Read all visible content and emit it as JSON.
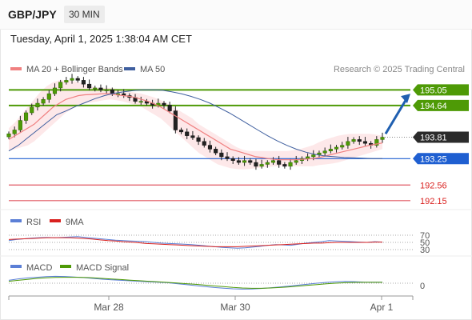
{
  "header": {
    "symbol": "GBP/JPY",
    "timeframe": "30 MIN",
    "timestamp": "Tuesday, April 1, 2025 1:38:04 AM CET"
  },
  "colors": {
    "resistance": "#4e9a06",
    "support": "#1f5fd1",
    "target": "#e05a64",
    "last_price": "#2b2b2b",
    "ma20": "#f08080",
    "ma50": "#3f5f9f",
    "band": "#fde2e4",
    "rsi": "#5b7fd6",
    "rsi_ma": "#d9211f",
    "macd": "#5b7fd6",
    "macd_signal": "#4e9a06",
    "arrow": "#1f5fb0"
  },
  "chart_data": [
    {
      "type": "candlestick",
      "legend": [
        "MA 20 + Bollinger Bands",
        "MA 50"
      ],
      "legend_placement": "top-left",
      "source": "Research © 2025 Trading Central",
      "x_ticks": [
        "Mar 28",
        "Mar 30",
        "Apr 1"
      ],
      "price_range": [
        192.0,
        195.35
      ],
      "close": [
        193.9,
        194.0,
        194.25,
        194.45,
        194.6,
        194.7,
        194.8,
        194.95,
        195.1,
        195.25,
        195.3,
        195.35,
        195.3,
        195.2,
        195.1,
        195.1,
        195.05,
        195.05,
        194.95,
        194.95,
        194.9,
        194.85,
        194.75,
        194.75,
        194.7,
        194.65,
        194.7,
        194.65,
        194.5,
        194.0,
        193.95,
        193.85,
        193.8,
        193.7,
        193.6,
        193.5,
        193.4,
        193.3,
        193.25,
        193.2,
        193.15,
        193.2,
        193.15,
        193.05,
        193.1,
        193.15,
        193.2,
        193.1,
        193.05,
        193.15,
        193.2,
        193.25,
        193.3,
        193.35,
        193.4,
        193.45,
        193.5,
        193.55,
        193.6,
        193.7,
        193.75,
        193.7,
        193.65,
        193.6,
        193.75,
        193.81
      ],
      "ma20": [
        193.75,
        193.85,
        193.95,
        194.05,
        194.15,
        194.3,
        194.45,
        194.6,
        194.7,
        194.8,
        194.85,
        194.9,
        194.92,
        194.93,
        194.94,
        194.95,
        194.95,
        194.92,
        194.9,
        194.88,
        194.85,
        194.8,
        194.75,
        194.68,
        194.6,
        194.5,
        194.4,
        194.3,
        194.2,
        194.1,
        194.0,
        193.9,
        193.8,
        193.7,
        193.6,
        193.5,
        193.45,
        193.4,
        193.35,
        193.3,
        193.28,
        193.25,
        193.23,
        193.22,
        193.22,
        193.22,
        193.23,
        193.24,
        193.25,
        193.28,
        193.32,
        193.36,
        193.4,
        193.44,
        193.48,
        193.52,
        193.56,
        193.6,
        193.63,
        193.66
      ],
      "bb_upper": [
        194.05,
        194.2,
        194.4,
        194.6,
        194.8,
        195.0,
        195.15,
        195.25,
        195.3,
        195.3,
        195.28,
        195.25,
        195.2,
        195.15,
        195.1,
        195.1,
        195.1,
        195.08,
        195.05,
        195.0,
        194.98,
        194.95,
        194.9,
        194.85,
        194.78,
        194.7,
        194.6,
        194.5,
        194.4,
        194.3,
        194.15,
        194.05,
        193.95,
        193.85,
        193.75,
        193.65,
        193.55,
        193.48,
        193.45,
        193.45,
        193.45,
        193.45,
        193.45,
        193.45,
        193.45,
        193.47,
        193.5,
        193.55,
        193.6,
        193.68,
        193.75,
        193.8,
        193.85,
        193.88,
        193.9,
        193.9,
        193.9,
        193.9,
        193.88,
        193.85
      ],
      "bb_lower": [
        193.45,
        193.5,
        193.55,
        193.6,
        193.7,
        193.85,
        194.0,
        194.15,
        194.3,
        194.45,
        194.55,
        194.65,
        194.7,
        194.72,
        194.75,
        194.78,
        194.8,
        194.78,
        194.75,
        194.7,
        194.65,
        194.6,
        194.5,
        194.4,
        194.3,
        194.15,
        194.0,
        193.85,
        193.7,
        193.55,
        193.4,
        193.3,
        193.2,
        193.1,
        193.05,
        193.0,
        192.98,
        192.97,
        192.98,
        193.0,
        193.02,
        193.03,
        193.05,
        193.05,
        193.05,
        193.05,
        193.05,
        193.05,
        193.05,
        193.08,
        193.1,
        193.12,
        193.15,
        193.2,
        193.25,
        193.3,
        193.35,
        193.4,
        193.45,
        193.5
      ],
      "ma50": [
        193.45,
        193.6,
        193.8,
        194.0,
        194.2,
        194.4,
        194.5,
        194.62,
        194.72,
        194.82,
        194.9,
        194.96,
        195.0,
        195.03,
        195.05,
        195.05,
        195.04,
        195.0,
        194.95,
        194.88,
        194.8,
        194.7,
        194.58,
        194.45,
        194.3,
        194.15,
        194.0,
        193.85,
        193.72,
        193.6,
        193.5,
        193.42,
        193.36,
        193.32,
        193.3,
        193.28,
        193.27,
        193.26,
        193.25,
        193.25
      ],
      "levels": [
        {
          "label": "195.05",
          "value": 195.05,
          "kind": "resistance"
        },
        {
          "label": "194.64",
          "value": 194.64,
          "kind": "resistance"
        },
        {
          "label": "193.81",
          "value": 193.81,
          "kind": "last"
        },
        {
          "label": "193.25",
          "value": 193.25,
          "kind": "support"
        },
        {
          "label": "192.56",
          "value": 192.56,
          "kind": "target"
        },
        {
          "label": "192.15",
          "value": 192.15,
          "kind": "target"
        }
      ]
    },
    {
      "type": "line",
      "legend": [
        "RSI",
        "9MA"
      ],
      "y_ticks": [
        "70",
        "50",
        "30"
      ],
      "y_range": [
        0,
        100
      ],
      "rsi": [
        55,
        58,
        60,
        62,
        63,
        64,
        63,
        64,
        65,
        66,
        64,
        62,
        60,
        58,
        56,
        55,
        54,
        53,
        52,
        50,
        48,
        47,
        46,
        45,
        44,
        42,
        40,
        38,
        36,
        35,
        34,
        35,
        37,
        39,
        42,
        44,
        43,
        42,
        45,
        48,
        50,
        52,
        55,
        54,
        53,
        52,
        51,
        50,
        52,
        51
      ],
      "rsi_ma": [
        58,
        59,
        60,
        61,
        62,
        63,
        63,
        63,
        63,
        62,
        61,
        59,
        57,
        55,
        54,
        52,
        51,
        49,
        47,
        46,
        45,
        44,
        43,
        42,
        41,
        40,
        39,
        38,
        38,
        38,
        38,
        39,
        40,
        41,
        42,
        43,
        44,
        45,
        46,
        47,
        48,
        48,
        49,
        50,
        50,
        50,
        50,
        50,
        51,
        51
      ]
    },
    {
      "type": "line",
      "legend": [
        "MACD",
        "MACD Signal"
      ],
      "y_ticks": [
        "0"
      ],
      "y_range": [
        -1,
        1
      ],
      "macd": [
        0.3,
        0.45,
        0.55,
        0.62,
        0.68,
        0.72,
        0.7,
        0.65,
        0.58,
        0.5,
        0.42,
        0.35,
        0.3,
        0.25,
        0.2,
        0.15,
        0.1,
        0.05,
        -0.05,
        -0.15,
        -0.25,
        -0.35,
        -0.45,
        -0.52,
        -0.58,
        -0.62,
        -0.6,
        -0.55,
        -0.48,
        -0.4,
        -0.3,
        -0.2,
        -0.1,
        0.0,
        0.08,
        0.14,
        0.18,
        0.16,
        0.12,
        0.1,
        0.1
      ],
      "macd_signal": [
        0.2,
        0.3,
        0.4,
        0.5,
        0.56,
        0.6,
        0.62,
        0.62,
        0.6,
        0.56,
        0.5,
        0.44,
        0.38,
        0.32,
        0.26,
        0.2,
        0.14,
        0.08,
        0.02,
        -0.05,
        -0.12,
        -0.2,
        -0.28,
        -0.36,
        -0.44,
        -0.5,
        -0.53,
        -0.53,
        -0.5,
        -0.45,
        -0.38,
        -0.3,
        -0.22,
        -0.14,
        -0.06,
        0.0,
        0.05,
        0.08,
        0.09,
        0.09,
        0.09
      ]
    }
  ]
}
